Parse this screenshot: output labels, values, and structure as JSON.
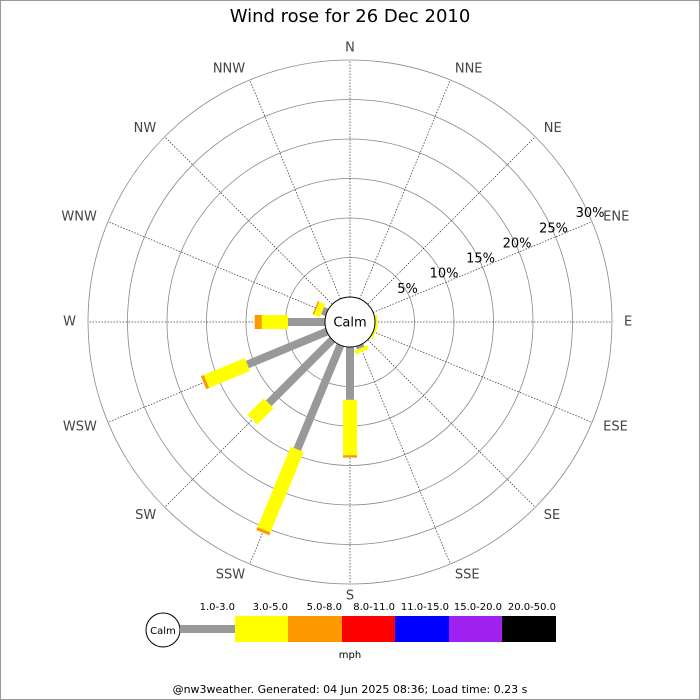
{
  "chart_data": {
    "type": "windrose",
    "title": "Wind rose for 26 Dec 2010",
    "center_label": "Calm",
    "unit_label": "mph",
    "footer": "@nw3weather. Generated: 04 Jun 2025 08:36; Load time: 0.23 s",
    "categories": [
      "N",
      "NNE",
      "NE",
      "ENE",
      "E",
      "ESE",
      "SE",
      "SSE",
      "S",
      "SSW",
      "SW",
      "WSW",
      "W",
      "WNW",
      "NW",
      "NNW"
    ],
    "rlim": [
      0,
      30
    ],
    "rticks": [
      {
        "value": 5,
        "label": "5%"
      },
      {
        "value": 10,
        "label": "10%"
      },
      {
        "value": 15,
        "label": "15%"
      },
      {
        "value": 20,
        "label": "20%"
      },
      {
        "value": 25,
        "label": "25%"
      },
      {
        "value": 30,
        "label": "30%"
      }
    ],
    "series": [
      {
        "name": "1.0-3.0",
        "color": "#999999",
        "values": [
          0,
          0,
          0,
          0,
          0,
          0,
          0,
          0.4,
          6.7,
          14.3,
          11.4,
          10.9,
          4.7,
          0.6,
          0,
          0
        ]
      },
      {
        "name": "3.0-5.0",
        "color": "#ffff00",
        "values": [
          0,
          0,
          0,
          0,
          0.3,
          0.3,
          0,
          0.5,
          7.0,
          11.0,
          2.9,
          5.6,
          3.3,
          0.8,
          0,
          0
        ]
      },
      {
        "name": "5.0-8.0",
        "color": "#ff9900",
        "values": [
          0,
          0,
          0,
          0,
          0,
          0,
          0,
          0,
          0.3,
          0.4,
          0,
          0.4,
          0.9,
          0.2,
          0,
          0
        ]
      },
      {
        "name": "8.0-11.0",
        "color": "#ff0000",
        "values": [
          0,
          0,
          0,
          0,
          0,
          0,
          0,
          0,
          0,
          0,
          0,
          0,
          0,
          0,
          0,
          0
        ]
      },
      {
        "name": "11.0-15.0",
        "color": "#0000ff",
        "values": [
          0,
          0,
          0,
          0,
          0,
          0,
          0,
          0,
          0,
          0,
          0,
          0,
          0,
          0,
          0,
          0
        ]
      },
      {
        "name": "15.0-20.0",
        "color": "#a020f0",
        "values": [
          0,
          0,
          0,
          0,
          0,
          0,
          0,
          0,
          0,
          0,
          0,
          0,
          0,
          0,
          0,
          0
        ]
      },
      {
        "name": "20.0-50.0",
        "color": "#000000",
        "values": [
          0,
          0,
          0,
          0,
          0,
          0,
          0,
          0,
          0,
          0,
          0,
          0,
          0,
          0,
          0,
          0
        ]
      }
    ]
  }
}
